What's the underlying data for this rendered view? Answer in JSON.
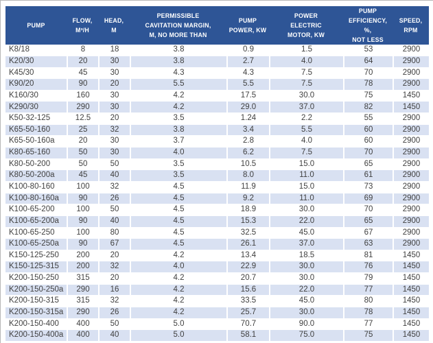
{
  "colors": {
    "header_bg": "#2e5596",
    "header_text": "#ffffff",
    "band": "#d9e1f2",
    "row_text": "#404040",
    "separator": "#ffffff",
    "frame": "#b7b7b7"
  },
  "table": {
    "columns": [
      {
        "key": "pump",
        "label": "PUMP"
      },
      {
        "key": "flow",
        "label": "FLOW,\nM³/H"
      },
      {
        "key": "head",
        "label": "HEAD,\nM"
      },
      {
        "key": "cavitation",
        "label": "PERMISSIBLE\nCAVITATION MARGIN,\nM, NO MORE THAN"
      },
      {
        "key": "pump_power",
        "label": "PUMP\nPOWER, KW"
      },
      {
        "key": "motor_power",
        "label": "POWER\nELECTRIC\nMOTOR, KW"
      },
      {
        "key": "efficiency",
        "label": "PUMP\nEFFICIENCY, %,\nNOT LESS"
      },
      {
        "key": "speed",
        "label": "SPEED,\nRPM"
      }
    ],
    "rows": [
      [
        "K8/18",
        "8",
        "18",
        "3.8",
        "0.9",
        "1.5",
        "53",
        "2900"
      ],
      [
        "K20/30",
        "20",
        "30",
        "3.8",
        "2.7",
        "4.0",
        "64",
        "2900"
      ],
      [
        "K45/30",
        "45",
        "30",
        "4.3",
        "4.3",
        "7.5",
        "70",
        "2900"
      ],
      [
        "K90/20",
        "90",
        "20",
        "5.5",
        "5.5",
        "7.5",
        "78",
        "2900"
      ],
      [
        "K160/30",
        "160",
        "30",
        "4.2",
        "17.5",
        "30.0",
        "75",
        "1450"
      ],
      [
        "K290/30",
        "290",
        "30",
        "4.2",
        "29.0",
        "37.0",
        "82",
        "1450"
      ],
      [
        "K50-32-125",
        "12.5",
        "20",
        "3.5",
        "1.24",
        "2.2",
        "55",
        "2900"
      ],
      [
        "K65-50-160",
        "25",
        "32",
        "3.8",
        "3.4",
        "5.5",
        "60",
        "2900"
      ],
      [
        "K65-50-160a",
        "20",
        "30",
        "3.7",
        "2.8",
        "4.0",
        "60",
        "2900"
      ],
      [
        "K80-65-160",
        "50",
        "30",
        "4.0",
        "6.2",
        "7.5",
        "70",
        "2900"
      ],
      [
        "K80-50-200",
        "50",
        "50",
        "3.5",
        "10.5",
        "15.0",
        "65",
        "2900"
      ],
      [
        "K80-50-200a",
        "45",
        "40",
        "3.5",
        "8.0",
        "11.0",
        "61",
        "2900"
      ],
      [
        "K100-80-160",
        "100",
        "32",
        "4.5",
        "11.9",
        "15.0",
        "73",
        "2900"
      ],
      [
        "K100-80-160a",
        "90",
        "26",
        "4.5",
        "9.2",
        "11.0",
        "69",
        "2900"
      ],
      [
        "K100-65-200",
        "100",
        "50",
        "4.5",
        "18.9",
        "30.0",
        "70",
        "2900"
      ],
      [
        "K100-65-200a",
        "90",
        "40",
        "4.5",
        "15.3",
        "22.0",
        "65",
        "2900"
      ],
      [
        "K100-65-250",
        "100",
        "80",
        "4.5",
        "32.5",
        "45.0",
        "67",
        "2900"
      ],
      [
        "K100-65-250a",
        "90",
        "67",
        "4.5",
        "26.1",
        "37.0",
        "63",
        "2900"
      ],
      [
        "K150-125-250",
        "200",
        "20",
        "4.2",
        "13.4",
        "18.5",
        "81",
        "1450"
      ],
      [
        "K150-125-315",
        "200",
        "32",
        "4.0",
        "22.9",
        "30.0",
        "76",
        "1450"
      ],
      [
        "K200-150-250",
        "315",
        "20",
        "4.2",
        "20.7",
        "30.0",
        "79",
        "1450"
      ],
      [
        "K200-150-250a",
        "290",
        "16",
        "4.2",
        "15.6",
        "22.0",
        "77",
        "1450"
      ],
      [
        "K200-150-315",
        "315",
        "32",
        "4.2",
        "33.5",
        "45.0",
        "80",
        "1450"
      ],
      [
        "K200-150-315a",
        "290",
        "26",
        "4.2",
        "25.7",
        "30.0",
        "78",
        "1450"
      ],
      [
        "K200-150-400",
        "400",
        "50",
        "5.0",
        "70.7",
        "90.0",
        "77",
        "1450"
      ],
      [
        "K200-150-400a",
        "400",
        "40",
        "5.0",
        "58.1",
        "75.0",
        "75",
        "1450"
      ]
    ]
  }
}
